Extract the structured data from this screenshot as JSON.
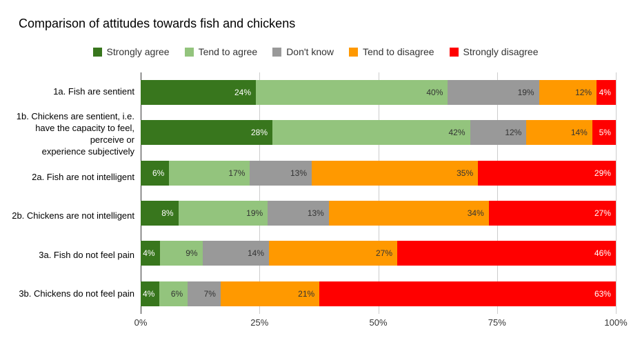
{
  "title": "Comparison of attitudes towards fish and chickens",
  "colors": {
    "strongly_agree": "#38761d",
    "tend_to_agree": "#93c47d",
    "dont_know": "#999999",
    "tend_to_disagree": "#ff9900",
    "strongly_disagree": "#ff0000",
    "gridline": "#cccccc",
    "axis_line": "#333333",
    "background": "#ffffff"
  },
  "chart_data": {
    "type": "bar",
    "orientation": "horizontal",
    "stacked": true,
    "normalized_to_100": true,
    "title": "Comparison of attitudes towards fish and chickens",
    "categories": [
      "1a. Fish are sentient",
      "1b. Chickens are sentient, i.e. have the capacity to feel, perceive or experience subjectively",
      "2a. Fish are not intelligent",
      "2b. Chickens are not intelligent",
      "3a. Fish do not feel pain",
      "3b. Chickens do not feel pain"
    ],
    "categories_display": [
      [
        "1a. Fish are sentient"
      ],
      [
        "1b. Chickens are sentient, i.e.",
        "have the capacity to feel,",
        "perceive or",
        "experience subjectively"
      ],
      [
        "2a. Fish are not intelligent"
      ],
      [
        "2b. Chickens are not intelligent"
      ],
      [
        "3a. Fish do not feel pain"
      ],
      [
        "3b. Chickens do not feel pain"
      ]
    ],
    "series": [
      {
        "name": "Strongly agree",
        "color": "#38761d",
        "label_color": "#ffffff",
        "values": [
          24,
          28,
          6,
          8,
          4,
          4
        ]
      },
      {
        "name": "Tend to agree",
        "color": "#93c47d",
        "label_color": "#333333",
        "values": [
          40,
          42,
          17,
          19,
          9,
          6
        ]
      },
      {
        "name": "Don't know",
        "color": "#999999",
        "label_color": "#333333",
        "values": [
          19,
          12,
          13,
          13,
          14,
          7
        ]
      },
      {
        "name": "Tend to disagree",
        "color": "#ff9900",
        "label_color": "#333333",
        "values": [
          12,
          14,
          35,
          34,
          27,
          21
        ]
      },
      {
        "name": "Strongly disagree",
        "color": "#ff0000",
        "label_color": "#ffffff",
        "values": [
          4,
          5,
          29,
          27,
          46,
          63
        ]
      }
    ],
    "value_suffix": "%",
    "x_ticks": [
      "0%",
      "25%",
      "50%",
      "75%",
      "100%"
    ],
    "xlim": [
      0,
      100
    ],
    "grid": true,
    "legend_position": "top"
  }
}
